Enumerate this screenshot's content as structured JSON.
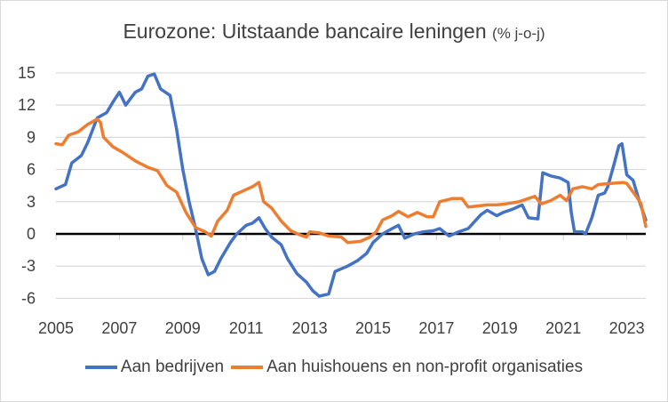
{
  "chart_data": {
    "type": "line",
    "title": "Eurozone: Uitstaande bancaire leningen",
    "subtitle": "(% j-o-j)",
    "xlabel": "",
    "ylabel": "",
    "xlim": [
      2005,
      2023.6
    ],
    "ylim": [
      -6,
      15
    ],
    "yticks": [
      "15",
      "12",
      "9",
      "6",
      "3",
      "0",
      "-3",
      "-6"
    ],
    "ytick_values": [
      15,
      12,
      9,
      6,
      3,
      0,
      -3,
      -6
    ],
    "xticks": [
      "2005",
      "2007",
      "2009",
      "2011",
      "2013",
      "2015",
      "2017",
      "2019",
      "2021",
      "2023"
    ],
    "xtick_values": [
      2005,
      2007,
      2009,
      2011,
      2013,
      2015,
      2017,
      2019,
      2021,
      2023
    ],
    "grid": true,
    "legend_position": "bottom",
    "series": [
      {
        "name": "Aan bedrijven",
        "color": "#4472c4",
        "x": [
          2005.0,
          2005.3,
          2005.5,
          2005.8,
          2006.0,
          2006.3,
          2006.6,
          2006.8,
          2007.0,
          2007.2,
          2007.5,
          2007.7,
          2007.9,
          2008.1,
          2008.3,
          2008.6,
          2008.8,
          2009.0,
          2009.2,
          2009.4,
          2009.6,
          2009.8,
          2010.0,
          2010.2,
          2010.5,
          2010.7,
          2011.0,
          2011.2,
          2011.4,
          2011.6,
          2011.8,
          2012.1,
          2012.3,
          2012.6,
          2012.9,
          2013.1,
          2013.3,
          2013.6,
          2013.8,
          2014.2,
          2014.5,
          2014.8,
          2015.0,
          2015.3,
          2015.6,
          2015.8,
          2016.0,
          2016.3,
          2016.6,
          2016.9,
          2017.1,
          2017.4,
          2017.7,
          2018.0,
          2018.4,
          2018.6,
          2018.9,
          2019.1,
          2019.4,
          2019.7,
          2019.9,
          2020.2,
          2020.35,
          2020.6,
          2020.9,
          2021.15,
          2021.25,
          2021.35,
          2021.6,
          2021.7,
          2021.9,
          2022.1,
          2022.3,
          2022.4,
          2022.6,
          2022.75,
          2022.85,
          2023.0,
          2023.2,
          2023.4,
          2023.6
        ],
        "values": [
          4.2,
          4.6,
          6.6,
          7.3,
          8.5,
          10.8,
          11.3,
          12.3,
          13.2,
          12.0,
          13.2,
          13.5,
          14.7,
          14.9,
          13.5,
          12.9,
          9.8,
          6.0,
          3.0,
          0.5,
          -2.3,
          -3.8,
          -3.5,
          -2.3,
          -0.8,
          0.0,
          0.8,
          1.0,
          1.5,
          0.5,
          -0.3,
          -1.0,
          -2.3,
          -3.7,
          -4.5,
          -5.3,
          -5.8,
          -5.6,
          -3.5,
          -3.0,
          -2.5,
          -1.8,
          -0.8,
          0.0,
          0.5,
          0.8,
          -0.4,
          0.0,
          0.2,
          0.3,
          0.5,
          -0.2,
          0.2,
          0.5,
          1.8,
          2.2,
          1.7,
          2.0,
          2.3,
          2.7,
          1.5,
          1.4,
          5.7,
          5.4,
          5.2,
          4.8,
          2.0,
          0.2,
          0.2,
          0.0,
          1.5,
          3.6,
          3.8,
          4.4,
          6.5,
          8.2,
          8.4,
          5.5,
          5.0,
          3.0,
          1.3
        ]
      },
      {
        "name": "Aan huishouens en non-profit organisaties",
        "color": "#ed7d31",
        "x": [
          2005.0,
          2005.2,
          2005.4,
          2005.7,
          2006.0,
          2006.3,
          2006.4,
          2006.5,
          2006.8,
          2007.1,
          2007.5,
          2007.9,
          2008.2,
          2008.5,
          2008.8,
          2009.1,
          2009.4,
          2009.7,
          2009.9,
          2010.1,
          2010.4,
          2010.6,
          2010.9,
          2011.2,
          2011.4,
          2011.55,
          2011.8,
          2012.1,
          2012.4,
          2012.7,
          2012.9,
          2013.0,
          2013.3,
          2013.6,
          2014.0,
          2014.2,
          2014.6,
          2014.9,
          2015.1,
          2015.3,
          2015.6,
          2015.8,
          2016.1,
          2016.4,
          2016.7,
          2016.9,
          2017.1,
          2017.5,
          2017.8,
          2018.0,
          2018.3,
          2018.6,
          2018.9,
          2019.2,
          2019.6,
          2019.9,
          2020.1,
          2020.3,
          2020.6,
          2020.9,
          2021.1,
          2021.3,
          2021.6,
          2021.9,
          2022.1,
          2022.5,
          2022.9,
          2023.0,
          2023.3,
          2023.45,
          2023.6
        ],
        "values": [
          8.4,
          8.3,
          9.2,
          9.5,
          10.2,
          10.7,
          10.4,
          9.0,
          8.1,
          7.6,
          6.8,
          6.2,
          5.9,
          4.5,
          3.9,
          2.0,
          0.6,
          0.2,
          -0.2,
          1.2,
          2.2,
          3.6,
          4.0,
          4.4,
          4.8,
          3.0,
          2.4,
          1.2,
          0.3,
          -0.1,
          -0.3,
          0.2,
          0.1,
          -0.2,
          -0.3,
          -0.8,
          -0.7,
          -0.3,
          0.2,
          1.3,
          1.7,
          2.1,
          1.6,
          2.0,
          1.6,
          1.6,
          3.0,
          3.3,
          3.3,
          2.5,
          2.6,
          2.7,
          2.7,
          2.8,
          3.0,
          3.3,
          3.5,
          2.8,
          3.1,
          3.6,
          3.1,
          4.2,
          4.4,
          4.2,
          4.6,
          4.7,
          4.8,
          4.7,
          3.5,
          2.8,
          0.7
        ]
      }
    ]
  }
}
